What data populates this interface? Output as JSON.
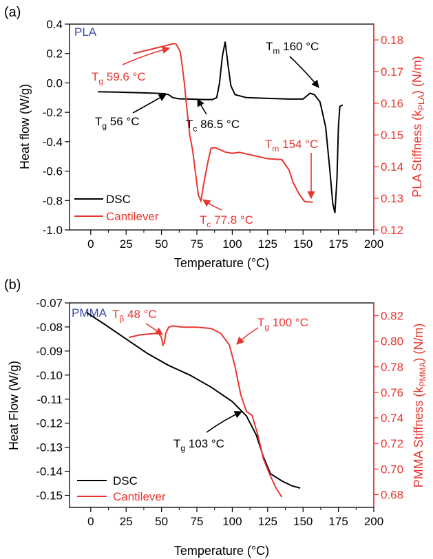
{
  "colors": {
    "dsc": "#000000",
    "cantilever": "#e8352e",
    "sample_label": "#3a4ba8"
  },
  "chart_data": [
    {
      "type": "line",
      "panel_label": "(a)",
      "sample_label": "PLA",
      "xlabel": "Temperature (°C)",
      "ylabel_left": "Heat flow (W/g)",
      "ylabel_right": "PLA Stiffness (k_PLA) (N/m)",
      "xlim": [
        -15,
        200
      ],
      "ylim_left": [
        -1.0,
        0.4
      ],
      "ylim_right": [
        0.12,
        0.185
      ],
      "x_ticks": [
        0,
        25,
        50,
        75,
        100,
        125,
        150,
        175,
        200
      ],
      "y_ticks_left": [
        "0.4",
        "0.2",
        "0.0",
        "-0.2",
        "-0.4",
        "-0.6",
        "-0.8",
        "-1.0"
      ],
      "y_ticks_right": [
        "0.18",
        "0.17",
        "0.16",
        "0.15",
        "0.14",
        "0.13",
        "0.12"
      ],
      "legend": {
        "placement": "bottom-left",
        "entries": [
          "DSC",
          "Cantilever"
        ]
      },
      "series": [
        {
          "name": "DSC",
          "axis": "left",
          "points": [
            [
              5,
              -0.06
            ],
            [
              20,
              -0.063
            ],
            [
              35,
              -0.067
            ],
            [
              45,
              -0.07
            ],
            [
              52,
              -0.073
            ],
            [
              55,
              -0.08
            ],
            [
              58,
              -0.1
            ],
            [
              62,
              -0.108
            ],
            [
              70,
              -0.11
            ],
            [
              80,
              -0.113
            ],
            [
              86,
              -0.113
            ],
            [
              89,
              -0.1
            ],
            [
              91,
              0.0
            ],
            [
              93,
              0.18
            ],
            [
              95,
              0.28
            ],
            [
              97,
              0.12
            ],
            [
              99,
              -0.02
            ],
            [
              102,
              -0.08
            ],
            [
              110,
              -0.1
            ],
            [
              125,
              -0.105
            ],
            [
              140,
              -0.11
            ],
            [
              150,
              -0.11
            ],
            [
              155,
              -0.07
            ],
            [
              158,
              -0.08
            ],
            [
              162,
              -0.13
            ],
            [
              166,
              -0.3
            ],
            [
              169,
              -0.6
            ],
            [
              171,
              -0.82
            ],
            [
              172.5,
              -0.885
            ],
            [
              174,
              -0.65
            ],
            [
              175,
              -0.3
            ],
            [
              176,
              -0.16
            ],
            [
              178,
              -0.15
            ]
          ]
        },
        {
          "name": "Cantilever",
          "axis": "right",
          "points": [
            [
              30,
              0.1757
            ],
            [
              45,
              0.1773
            ],
            [
              53,
              0.1782
            ],
            [
              58,
              0.1788
            ],
            [
              60,
              0.1788
            ],
            [
              61,
              0.1782
            ],
            [
              63,
              0.1765
            ],
            [
              64,
              0.174
            ],
            [
              66,
              0.167
            ],
            [
              68,
              0.158
            ],
            [
              70,
              0.15
            ],
            [
              72,
              0.145
            ],
            [
              74,
              0.138
            ],
            [
              76,
              0.131
            ],
            [
              77.8,
              0.1292
            ],
            [
              80,
              0.135
            ],
            [
              83,
              0.142
            ],
            [
              85,
              0.1458
            ],
            [
              88,
              0.146
            ],
            [
              95,
              0.1446
            ],
            [
              100,
              0.1442
            ],
            [
              105,
              0.1445
            ],
            [
              115,
              0.1435
            ],
            [
              125,
              0.1425
            ],
            [
              135,
              0.1422
            ],
            [
              140,
              0.139
            ],
            [
              143,
              0.135
            ],
            [
              147,
              0.1315
            ],
            [
              151,
              0.129
            ],
            [
              154,
              0.1288
            ],
            [
              157,
              0.1288
            ]
          ]
        }
      ],
      "annotations": [
        {
          "main": "T",
          "sub": "g",
          "rest": " 59.6 °C",
          "color": "red"
        },
        {
          "main": "T",
          "sub": "g",
          "rest": " 56 °C",
          "color": "black"
        },
        {
          "main": "T",
          "sub": "c",
          "rest": " 86.5 °C",
          "color": "black"
        },
        {
          "main": "T",
          "sub": "m",
          "rest": " 160 °C",
          "color": "black"
        },
        {
          "main": "T",
          "sub": "m",
          "rest": " 154 °C",
          "color": "red"
        },
        {
          "main": "T",
          "sub": "c",
          "rest": " 77.8 °C",
          "color": "red"
        }
      ]
    },
    {
      "type": "line",
      "panel_label": "(b)",
      "sample_label": "PMMA",
      "xlabel": "Temperature (°C)",
      "ylabel_left": "Heat Flow (W/g)",
      "ylabel_right": "PMMA Stiffness (k_PMMA) (N/m)",
      "xlim": [
        -15,
        200
      ],
      "ylim_left": [
        -0.155,
        -0.07
      ],
      "ylim_right": [
        0.67,
        0.83
      ],
      "x_ticks": [
        0,
        25,
        50,
        75,
        100,
        125,
        150,
        175,
        200
      ],
      "y_ticks_left": [
        "-0.07",
        "-0.08",
        "-0.09",
        "-0.10",
        "-0.11",
        "-0.12",
        "-0.13",
        "-0.14",
        "-0.15"
      ],
      "y_ticks_right": [
        "0.82",
        "0.80",
        "0.78",
        "0.76",
        "0.74",
        "0.72",
        "0.70",
        "0.68"
      ],
      "legend": {
        "placement": "bottom-left",
        "entries": [
          "DSC",
          "Cantilever"
        ]
      },
      "series": [
        {
          "name": "DSC",
          "axis": "left",
          "points": [
            [
              -3,
              -0.074
            ],
            [
              10,
              -0.079
            ],
            [
              25,
              -0.085
            ],
            [
              40,
              -0.091
            ],
            [
              55,
              -0.096
            ],
            [
              70,
              -0.1
            ],
            [
              85,
              -0.105
            ],
            [
              100,
              -0.111
            ],
            [
              110,
              -0.117
            ],
            [
              117,
              -0.125
            ],
            [
              122,
              -0.134
            ],
            [
              127,
              -0.141
            ],
            [
              135,
              -0.144
            ],
            [
              142,
              -0.146
            ],
            [
              148,
              -0.147
            ]
          ]
        },
        {
          "name": "Cantilever",
          "axis": "right",
          "points": [
            [
              27,
              0.803
            ],
            [
              35,
              0.805
            ],
            [
              45,
              0.806
            ],
            [
              48,
              0.806
            ],
            [
              50,
              0.803
            ],
            [
              51,
              0.797
            ],
            [
              52,
              0.799
            ],
            [
              53,
              0.806
            ],
            [
              55,
              0.811
            ],
            [
              58,
              0.812
            ],
            [
              65,
              0.811
            ],
            [
              75,
              0.811
            ],
            [
              85,
              0.81
            ],
            [
              92,
              0.806
            ],
            [
              98,
              0.797
            ],
            [
              102,
              0.78
            ],
            [
              106,
              0.758
            ],
            [
              110,
              0.745
            ],
            [
              114,
              0.742
            ],
            [
              118,
              0.727
            ],
            [
              122,
              0.708
            ],
            [
              126,
              0.697
            ],
            [
              131,
              0.685
            ],
            [
              135,
              0.678
            ]
          ]
        }
      ],
      "annotations": [
        {
          "main": "T",
          "sub": "β",
          "rest": " 48 °C",
          "color": "red"
        },
        {
          "main": "T",
          "sub": "g",
          "rest": " 100 °C",
          "color": "red"
        },
        {
          "main": "T",
          "sub": "g",
          "rest": " 103 °C",
          "color": "black"
        }
      ]
    }
  ]
}
